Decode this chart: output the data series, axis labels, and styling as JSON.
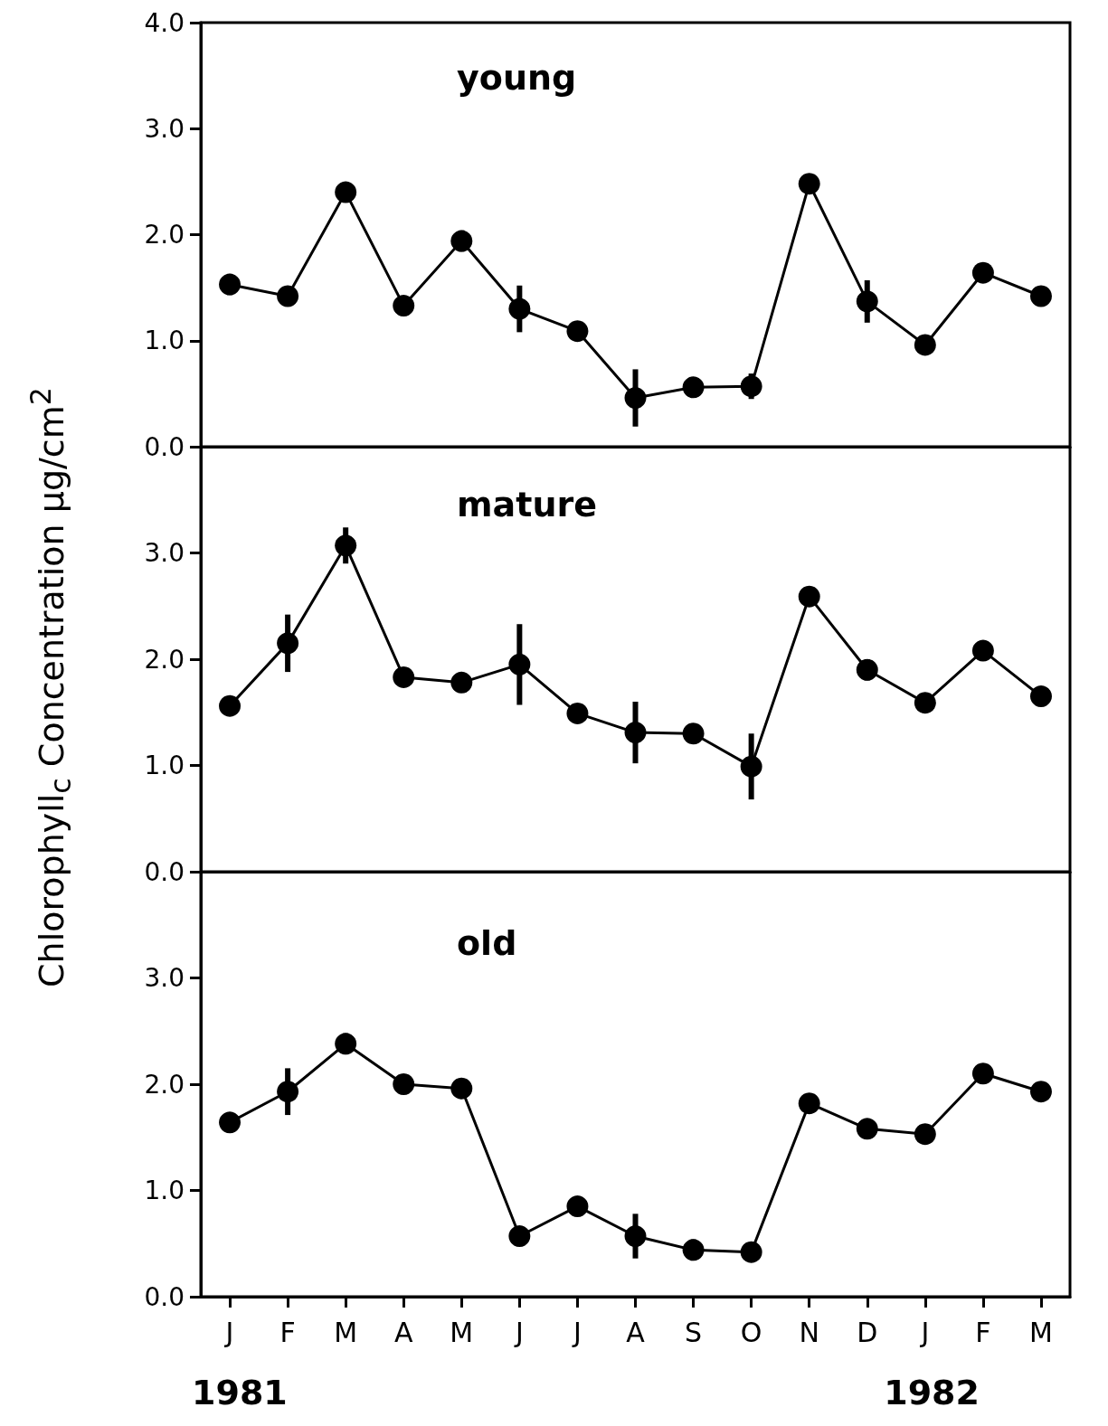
{
  "chart_data": [
    {
      "type": "line",
      "title": "young",
      "categories": [
        null,
        null,
        null,
        null,
        null,
        null,
        null,
        null,
        null,
        null,
        null,
        null,
        null,
        null,
        null
      ],
      "series": [
        {
          "color": "#000000",
          "values": [
            1.53,
            1.42,
            2.4,
            1.33,
            1.94,
            1.3,
            1.09,
            0.46,
            0.56,
            0.57,
            2.48,
            1.37,
            0.96,
            1.64,
            1.42
          ],
          "errors": [
            0.1,
            0.08,
            null,
            null,
            0.1,
            0.22,
            null,
            0.27,
            null,
            0.12,
            null,
            0.2,
            null,
            null,
            null
          ]
        }
      ],
      "ylim": [
        0,
        4
      ],
      "yticks": [
        {
          "value": 0,
          "label": "0.0"
        },
        {
          "value": 1,
          "label": "1.0"
        },
        {
          "value": 2,
          "label": "2.0"
        },
        {
          "value": 3,
          "label": "3.0"
        },
        {
          "value": 4,
          "label": "4.0"
        }
      ],
      "marker": "circle",
      "line_style": "solid",
      "tick_labels": "y"
    },
    {
      "type": "line",
      "title": "mature",
      "ylabel": "Chlorophyll$_{c}$  Concentration µg/cm$^{2}$",
      "categories": [
        null,
        null,
        null,
        null,
        null,
        null,
        null,
        null,
        null,
        null,
        null,
        null,
        null,
        null,
        null
      ],
      "series": [
        {
          "color": "#000000",
          "values": [
            1.56,
            2.15,
            3.07,
            1.83,
            1.78,
            1.95,
            1.49,
            1.31,
            1.3,
            0.99,
            2.59,
            1.9,
            1.59,
            2.08,
            1.65
          ],
          "errors": [
            null,
            0.27,
            0.17,
            null,
            null,
            0.38,
            null,
            0.29,
            null,
            0.31,
            null,
            0.1,
            null,
            0.08,
            null
          ]
        }
      ],
      "ylim": [
        0,
        4
      ],
      "yticks": [
        {
          "value": 0,
          "label": "0.0"
        },
        {
          "value": 1,
          "label": "1.0"
        },
        {
          "value": 2,
          "label": "2.0"
        },
        {
          "value": 3,
          "label": "3.0"
        },
        {
          "value": 4,
          "label": null
        }
      ],
      "marker": "circle",
      "line_style": "solid",
      "tick_labels": "y"
    },
    {
      "type": "line",
      "title": "old",
      "categories": [
        "J",
        "F",
        "M",
        "A",
        "M",
        "J",
        "J",
        "A",
        "S",
        "O",
        "N",
        "D",
        "J",
        "F",
        "M"
      ],
      "series": [
        {
          "color": "#000000",
          "values": [
            1.64,
            1.93,
            2.38,
            2.0,
            1.96,
            0.57,
            0.85,
            0.57,
            0.44,
            0.42,
            1.82,
            1.58,
            1.53,
            2.1,
            1.93
          ],
          "errors": [
            null,
            0.22,
            0.1,
            null,
            null,
            null,
            null,
            0.21,
            0.1,
            0.08,
            null,
            null,
            null,
            0.06,
            null
          ]
        }
      ],
      "ylim": [
        0,
        4
      ],
      "yticks": [
        {
          "value": 0,
          "label": "0.0"
        },
        {
          "value": 1,
          "label": "1.0"
        },
        {
          "value": 2,
          "label": "2.0"
        },
        {
          "value": 3,
          "label": "3.0"
        },
        {
          "value": 4,
          "label": null
        }
      ],
      "marker": "circle",
      "line_style": "solid",
      "annotations": [
        "1981",
        "1982"
      ]
    }
  ]
}
